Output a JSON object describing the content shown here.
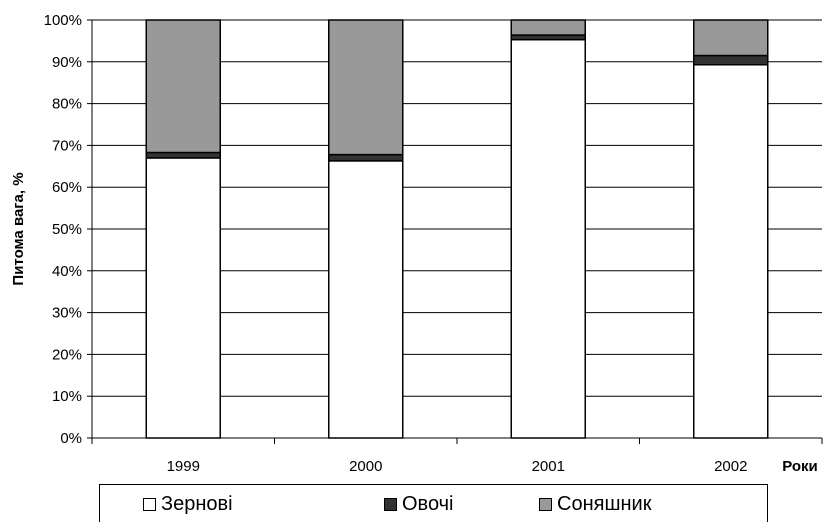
{
  "chart_data": {
    "type": "bar",
    "stacked": true,
    "normalized": true,
    "categories": [
      "1999",
      "2000",
      "2001",
      "2002"
    ],
    "series": [
      {
        "name": "Зернові",
        "color": "#ffffff",
        "values": [
          67,
          66.3,
          95.3,
          89.3
        ]
      },
      {
        "name": "Овочі",
        "color": "#333333",
        "values": [
          1.3,
          1.5,
          1.1,
          2.2
        ]
      },
      {
        "name": "Соняшник",
        "color": "#999999",
        "values": [
          31.7,
          32.2,
          3.6,
          8.5
        ]
      }
    ],
    "ylabel": "Питома вага, %",
    "xlabel": "Роки",
    "ylim": [
      0,
      100
    ],
    "yticks": [
      "0%",
      "10%",
      "20%",
      "30%",
      "40%",
      "50%",
      "60%",
      "70%",
      "80%",
      "90%",
      "100%"
    ],
    "grid": true,
    "legend_position": "bottom"
  }
}
